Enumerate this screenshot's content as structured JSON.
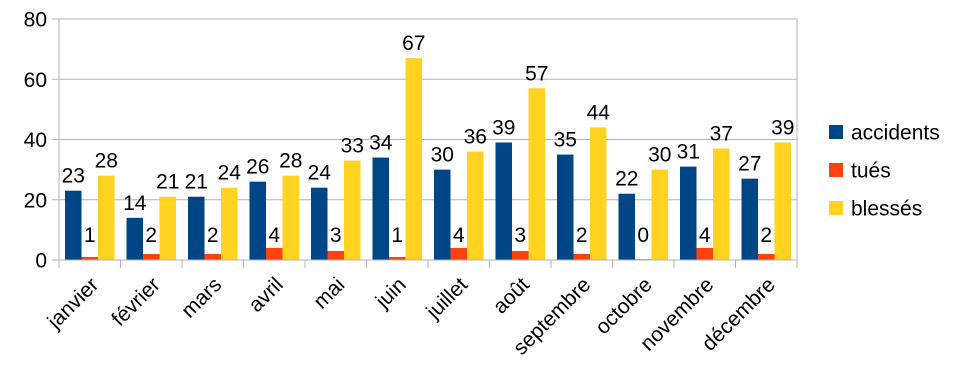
{
  "chart_data": {
    "type": "bar",
    "categories": [
      "janvier",
      "février",
      "mars",
      "avril",
      "mai",
      "juin",
      "juillet",
      "août",
      "septembre",
      "octobre",
      "novembre",
      "décembre"
    ],
    "series": [
      {
        "name": "accidents",
        "color": "#004586",
        "values": [
          23,
          14,
          21,
          26,
          24,
          34,
          30,
          39,
          35,
          22,
          31,
          27
        ]
      },
      {
        "name": "tués",
        "color": "#ff420e",
        "values": [
          1,
          2,
          2,
          4,
          3,
          1,
          4,
          3,
          2,
          0,
          4,
          2
        ]
      },
      {
        "name": "blessés",
        "color": "#ffd320",
        "values": [
          28,
          21,
          24,
          28,
          33,
          67,
          36,
          57,
          44,
          30,
          37,
          39
        ]
      }
    ],
    "ylim": [
      0,
      80
    ],
    "yticks": [
      0,
      20,
      40,
      60,
      80
    ],
    "grid": true,
    "data_labels": true,
    "legend_position": "right",
    "title": "",
    "xlabel": "",
    "ylabel": ""
  }
}
